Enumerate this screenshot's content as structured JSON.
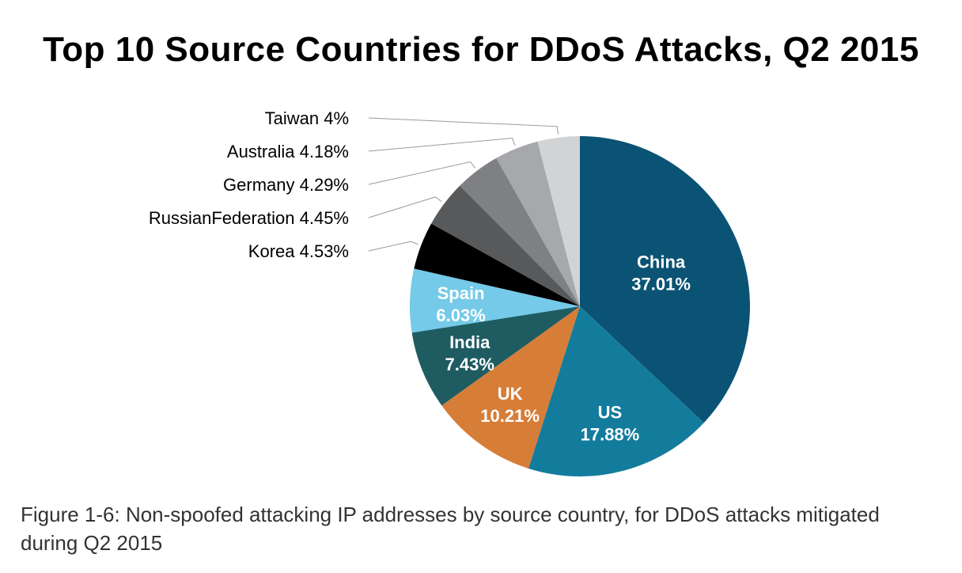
{
  "chart_data": {
    "type": "pie",
    "title": "Top 10 Source Countries for DDoS Attacks, Q2 2015",
    "caption": "Figure 1-6: Non-spoofed attacking IP addresses by source country, for DDoS attacks mitigated during Q2 2015",
    "start_angle_deg": 0,
    "direction": "clockwise",
    "slices": [
      {
        "label": "China",
        "value": 37.01,
        "display": "37.01%",
        "color": "#0b5374",
        "label_position": "inside"
      },
      {
        "label": "US",
        "value": 17.88,
        "display": "17.88%",
        "color": "#137c9c",
        "label_position": "inside"
      },
      {
        "label": "UK",
        "value": 10.21,
        "display": "10.21%",
        "color": "#d67d38",
        "label_position": "inside"
      },
      {
        "label": "India",
        "value": 7.43,
        "display": "7.43%",
        "color": "#1e5c62",
        "label_position": "inside"
      },
      {
        "label": "Spain",
        "value": 6.03,
        "display": "6.03%",
        "color": "#74cae8",
        "label_position": "inside"
      },
      {
        "label": "Korea",
        "value": 4.53,
        "display": "4.53%",
        "color": "#000000",
        "label_position": "outside"
      },
      {
        "label": "RussianFederation",
        "value": 4.45,
        "display": "4.45%",
        "color": "#58595b",
        "label_position": "outside"
      },
      {
        "label": "Germany",
        "value": 4.29,
        "display": "4.29%",
        "color": "#7f8083",
        "label_position": "outside"
      },
      {
        "label": "Australia",
        "value": 4.18,
        "display": "4.18%",
        "color": "#a6a8ab",
        "label_position": "outside"
      },
      {
        "label": "Taiwan",
        "value": 4,
        "display": "4%",
        "color": "#d1d3d4",
        "label_position": "outside"
      }
    ]
  }
}
